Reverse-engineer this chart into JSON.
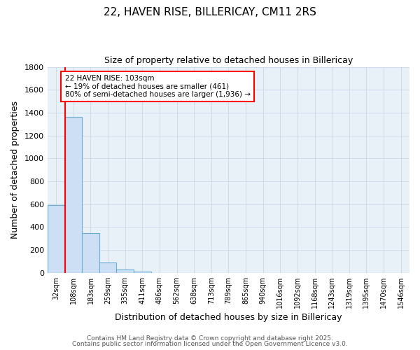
{
  "title_line1": "22, HAVEN RISE, BILLERICAY, CM11 2RS",
  "title_line2": "Size of property relative to detached houses in Billericay",
  "xlabel": "Distribution of detached houses by size in Billericay",
  "ylabel": "Number of detached properties",
  "bin_labels": [
    "32sqm",
    "108sqm",
    "183sqm",
    "259sqm",
    "335sqm",
    "411sqm",
    "486sqm",
    "562sqm",
    "638sqm",
    "713sqm",
    "789sqm",
    "865sqm",
    "940sqm",
    "1016sqm",
    "1092sqm",
    "1168sqm",
    "1243sqm",
    "1319sqm",
    "1395sqm",
    "1470sqm",
    "1546sqm"
  ],
  "bin_values": [
    590,
    1360,
    350,
    90,
    28,
    10,
    0,
    0,
    0,
    0,
    0,
    0,
    0,
    0,
    0,
    0,
    0,
    0,
    0,
    0,
    0
  ],
  "bar_color": "#ccdff5",
  "bar_edge_color": "#6aaed6",
  "red_line_x": 0.5,
  "annotation_text": "22 HAVEN RISE: 103sqm\n← 19% of detached houses are smaller (461)\n80% of semi-detached houses are larger (1,936) →",
  "annotation_box_color": "white",
  "annotation_box_edge": "red",
  "ylim": [
    0,
    1800
  ],
  "yticks": [
    0,
    200,
    400,
    600,
    800,
    1000,
    1200,
    1400,
    1600,
    1800
  ],
  "grid_color": "#c8d8e8",
  "plot_bg_color": "#e8f0f8",
  "fig_bg_color": "#ffffff",
  "footer_line1": "Contains HM Land Registry data © Crown copyright and database right 2025.",
  "footer_line2": "Contains public sector information licensed under the Open Government Licence v3.0."
}
